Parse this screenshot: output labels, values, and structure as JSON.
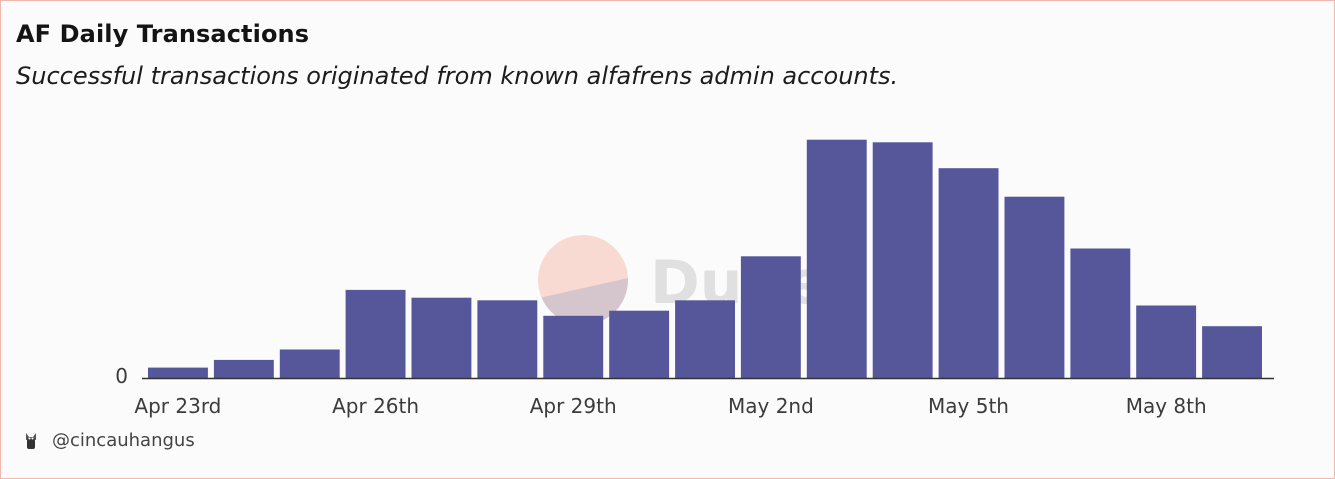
{
  "header": {
    "title": "AF Daily Transactions",
    "subtitle": "Successful transactions originated from known alfafrens admin accounts."
  },
  "footer": {
    "author": "@cincauhangus",
    "avatar_icon": "cat-avatar-icon"
  },
  "watermark": {
    "text": "Dune"
  },
  "colors": {
    "bar": "#56569b",
    "axis": "#333333",
    "watermark_circle": "#f7b9ac"
  },
  "chart_data": {
    "type": "bar",
    "categories": [
      "Apr 23rd",
      "Apr 24th",
      "Apr 25th",
      "Apr 26th",
      "Apr 27th",
      "Apr 28th",
      "Apr 29th",
      "Apr 30th",
      "May 1st",
      "May 2nd",
      "May 3rd",
      "May 4th",
      "May 5th",
      "May 6th",
      "May 7th",
      "May 8th",
      "May 9th"
    ],
    "values": [
      4,
      7,
      11,
      34,
      31,
      30,
      24,
      26,
      30,
      47,
      92,
      91,
      81,
      70,
      50,
      28,
      20
    ],
    "x_tick_labels": [
      "Apr 23rd",
      "Apr 26th",
      "Apr 29th",
      "May 2nd",
      "May 5th",
      "May 8th"
    ],
    "y_tick_labels": [
      "0"
    ],
    "ylim": [
      0,
      100
    ],
    "grid": false,
    "legend": "none"
  }
}
